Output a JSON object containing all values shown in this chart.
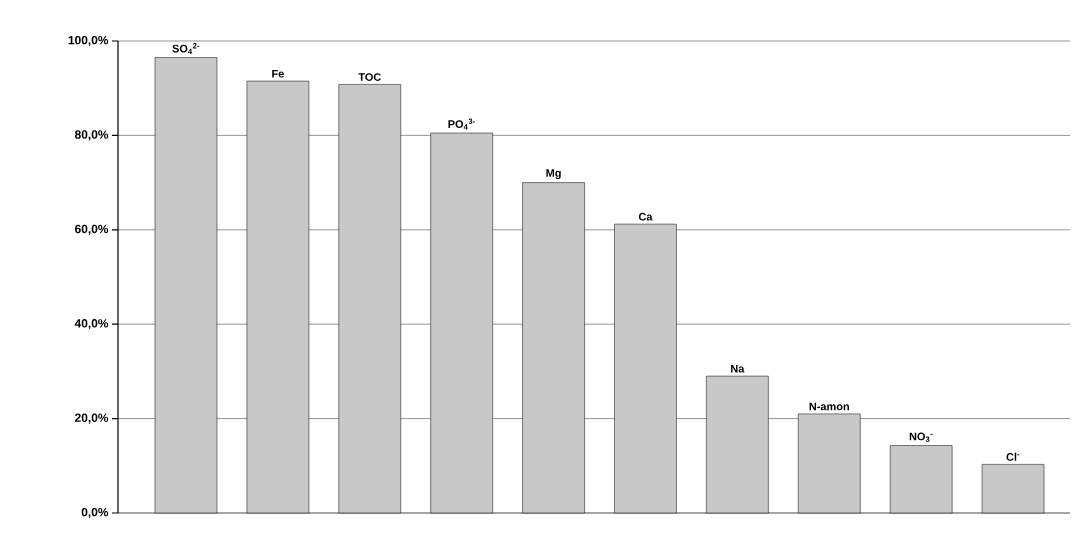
{
  "chart_data": {
    "type": "bar",
    "categories": [
      "SO$_{4}$$^{2-}$",
      "Fe",
      "TOC",
      "PO$_{4}$$^{3-}$",
      "Mg",
      "Ca",
      "Na",
      "N-amon",
      "NO$_{3}$$^{-}$",
      "Cl$^{-}$"
    ],
    "values": [
      96.5,
      91.5,
      90.8,
      80.5,
      70.0,
      61.2,
      29.0,
      21.0,
      14.3,
      10.3
    ],
    "color": "#c8c8c8",
    "ylim": [
      0,
      100
    ],
    "yticks": [
      {
        "value": 0,
        "label": "0,0%"
      },
      {
        "value": 20,
        "label": "20,0%"
      },
      {
        "value": 40,
        "label": "40,0%"
      },
      {
        "value": 60,
        "label": "60,0%"
      },
      {
        "value": 80,
        "label": "80,0%"
      },
      {
        "value": 100,
        "label": "100,0%"
      }
    ],
    "grid": "y"
  }
}
